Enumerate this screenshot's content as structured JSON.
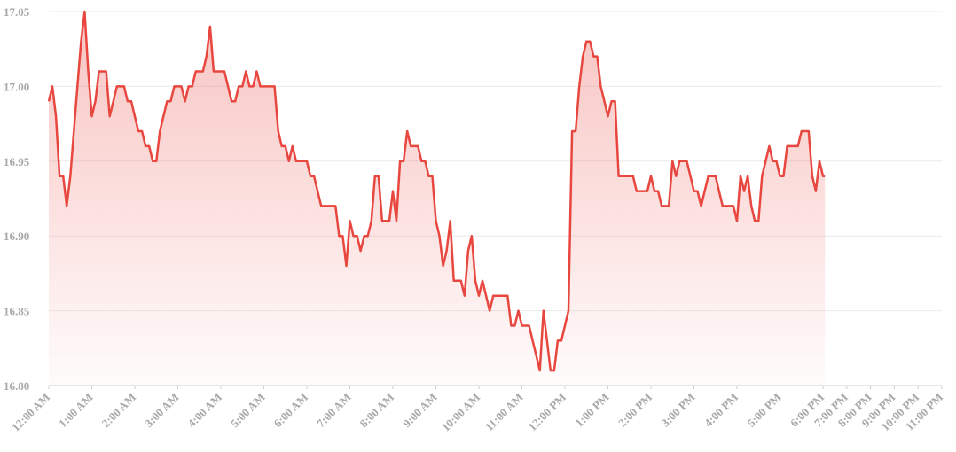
{
  "chart_data": {
    "type": "line",
    "color": "#e8473f",
    "grid": true,
    "xlim": [
      0,
      1380
    ],
    "xticks": [
      {
        "value": 0,
        "label": "12:00 AM"
      },
      {
        "value": 60,
        "label": "1:00 AM"
      },
      {
        "value": 120,
        "label": "2:00 AM"
      },
      {
        "value": 180,
        "label": "3:00 AM"
      },
      {
        "value": 240,
        "label": "4:00 AM"
      },
      {
        "value": 300,
        "label": "5:00 AM"
      },
      {
        "value": 360,
        "label": "6:00 AM"
      },
      {
        "value": 420,
        "label": "7:00 AM"
      },
      {
        "value": 480,
        "label": "8:00 AM"
      },
      {
        "value": 540,
        "label": "9:00 AM"
      },
      {
        "value": 600,
        "label": "10:00 AM"
      },
      {
        "value": 660,
        "label": "11:00 AM"
      },
      {
        "value": 720,
        "label": "12:00 PM"
      },
      {
        "value": 780,
        "label": "1:00 PM"
      },
      {
        "value": 840,
        "label": "2:00 PM"
      },
      {
        "value": 900,
        "label": "3:00 PM"
      },
      {
        "value": 960,
        "label": "4:00 PM"
      },
      {
        "value": 1020,
        "label": "5:00 PM"
      },
      {
        "value": 1080,
        "label": "6:00 PM"
      },
      {
        "value": 1140,
        "label": "7:00 PM"
      },
      {
        "value": 1200,
        "label": "8:00 PM"
      },
      {
        "value": 1260,
        "label": "9:00 PM"
      },
      {
        "value": 1320,
        "label": "10:00 PM"
      },
      {
        "value": 1380,
        "label": "11:00 PM"
      }
    ],
    "ylim": [
      16.8,
      17.05
    ],
    "yticks": [
      {
        "value": 16.8,
        "label": "16.80"
      },
      16.85,
      {
        "value": 16.9,
        "label": "16.90"
      },
      16.95,
      {
        "value": 17,
        "label": "17.00"
      },
      17.05
    ],
    "x": [
      0,
      5,
      10,
      15,
      20,
      25,
      30,
      35,
      40,
      45,
      50,
      55,
      60,
      65,
      70,
      75,
      80,
      85,
      90,
      95,
      100,
      105,
      110,
      115,
      120,
      125,
      130,
      135,
      140,
      145,
      150,
      155,
      160,
      165,
      170,
      175,
      180,
      185,
      190,
      195,
      200,
      205,
      210,
      215,
      220,
      225,
      230,
      235,
      240,
      245,
      250,
      255,
      260,
      265,
      270,
      275,
      280,
      285,
      290,
      295,
      300,
      305,
      310,
      315,
      320,
      325,
      330,
      335,
      340,
      345,
      350,
      355,
      360,
      365,
      370,
      375,
      380,
      385,
      390,
      395,
      400,
      405,
      410,
      415,
      420,
      425,
      430,
      435,
      440,
      445,
      450,
      455,
      460,
      465,
      470,
      475,
      480,
      485,
      490,
      495,
      500,
      505,
      510,
      515,
      520,
      525,
      530,
      535,
      540,
      545,
      550,
      555,
      560,
      565,
      570,
      575,
      580,
      585,
      590,
      595,
      600,
      605,
      610,
      615,
      620,
      625,
      630,
      635,
      640,
      645,
      650,
      655,
      660,
      665,
      670,
      675,
      680,
      685,
      690,
      695,
      700,
      705,
      710,
      715,
      720,
      725,
      730,
      735,
      740,
      745,
      750,
      755,
      760,
      765,
      770,
      775,
      780,
      785,
      790,
      795,
      800,
      805,
      810,
      815,
      820,
      825,
      830,
      835,
      840,
      845,
      850,
      855,
      860,
      865,
      870,
      875,
      880,
      885,
      890,
      895,
      900,
      905,
      910,
      915,
      920,
      925,
      930,
      935,
      940,
      945,
      950,
      955,
      960,
      965,
      970,
      975,
      980,
      985,
      990,
      995,
      1000,
      1005,
      1010,
      1015,
      1020,
      1025,
      1030,
      1035,
      1040,
      1045,
      1050,
      1055,
      1060,
      1065,
      1070,
      1075,
      1080,
      1085
    ],
    "values": [
      16.99,
      17.0,
      16.98,
      16.94,
      16.94,
      16.92,
      16.94,
      16.97,
      17.0,
      17.03,
      17.05,
      17.01,
      16.98,
      16.99,
      17.01,
      17.01,
      17.01,
      16.98,
      16.99,
      17.0,
      17.0,
      17.0,
      16.99,
      16.99,
      16.98,
      16.97,
      16.97,
      16.96,
      16.96,
      16.95,
      16.95,
      16.97,
      16.98,
      16.99,
      16.99,
      17.0,
      17.0,
      17.0,
      16.99,
      17.0,
      17.0,
      17.01,
      17.01,
      17.01,
      17.02,
      17.04,
      17.01,
      17.01,
      17.01,
      17.01,
      17.0,
      16.99,
      16.99,
      17.0,
      17.0,
      17.01,
      17.0,
      17.0,
      17.01,
      17.0,
      17.0,
      17.0,
      17.0,
      17.0,
      16.97,
      16.96,
      16.96,
      16.95,
      16.96,
      16.95,
      16.95,
      16.95,
      16.95,
      16.94,
      16.94,
      16.93,
      16.92,
      16.92,
      16.92,
      16.92,
      16.92,
      16.9,
      16.9,
      16.88,
      16.91,
      16.9,
      16.9,
      16.89,
      16.9,
      16.9,
      16.91,
      16.94,
      16.94,
      16.91,
      16.91,
      16.91,
      16.93,
      16.91,
      16.95,
      16.95,
      16.97,
      16.96,
      16.96,
      16.96,
      16.95,
      16.95,
      16.94,
      16.94,
      16.91,
      16.9,
      16.88,
      16.89,
      16.91,
      16.87,
      16.87,
      16.87,
      16.86,
      16.89,
      16.9,
      16.87,
      16.86,
      16.87,
      16.86,
      16.85,
      16.86,
      16.86,
      16.86,
      16.86,
      16.86,
      16.84,
      16.84,
      16.85,
      16.84,
      16.84,
      16.84,
      16.83,
      16.82,
      16.81,
      16.85,
      16.83,
      16.81,
      16.81,
      16.83,
      16.83,
      16.84,
      16.85,
      16.97,
      16.97,
      17.0,
      17.02,
      17.03,
      17.03,
      17.02,
      17.02,
      17.0,
      16.99,
      16.98,
      16.99,
      16.99,
      16.94,
      16.94,
      16.94,
      16.94,
      16.94,
      16.93,
      16.93,
      16.93,
      16.93,
      16.94,
      16.93,
      16.93,
      16.92,
      16.92,
      16.92,
      16.95,
      16.94,
      16.95,
      16.95,
      16.95,
      16.94,
      16.93,
      16.93,
      16.92,
      16.93,
      16.94,
      16.94,
      16.94,
      16.93,
      16.92,
      16.92,
      16.92,
      16.92,
      16.91,
      16.94,
      16.93,
      16.94,
      16.92,
      16.91,
      16.91,
      16.94,
      16.95,
      16.96,
      16.95,
      16.95,
      16.94,
      16.94,
      16.96,
      16.96,
      16.96,
      16.96,
      16.97,
      16.97,
      16.97,
      16.94,
      16.93,
      16.95,
      16.94,
      16.94
    ]
  }
}
